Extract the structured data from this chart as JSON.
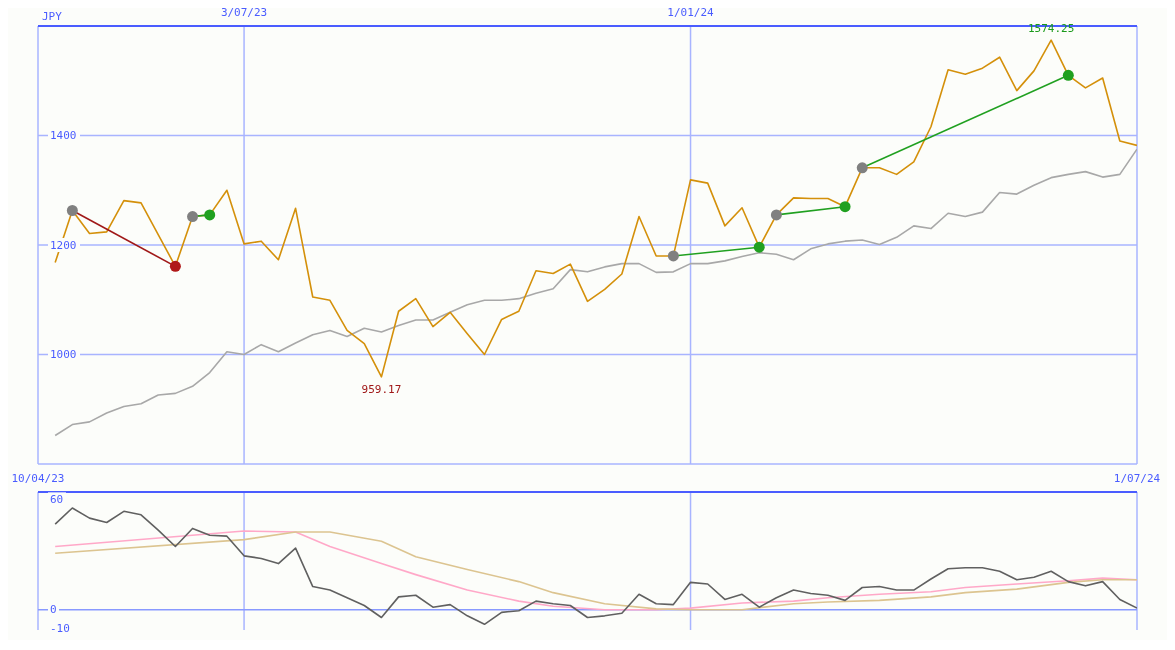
{
  "chart_data": [
    {
      "type": "line",
      "ylabel": "JPY",
      "x": [
        "2023-04-17",
        "2023-04-24",
        "2023-05-01",
        "2023-05-08",
        "2023-05-15",
        "2023-05-22",
        "2023-05-29",
        "2023-06-05",
        "2023-06-12",
        "2023-06-19",
        "2023-06-26",
        "2023-07-03",
        "2023-07-10",
        "2023-07-17",
        "2023-07-24",
        "2023-07-31",
        "2023-08-07",
        "2023-08-14",
        "2023-08-21",
        "2023-08-28",
        "2023-09-04",
        "2023-09-11",
        "2023-09-18",
        "2023-09-25",
        "2023-10-02",
        "2023-10-09",
        "2023-10-16",
        "2023-10-23",
        "2023-10-30",
        "2023-11-06",
        "2023-11-13",
        "2023-11-20",
        "2023-11-27",
        "2023-12-04",
        "2023-12-11",
        "2023-12-18",
        "2023-12-25",
        "2024-01-01",
        "2024-01-08",
        "2024-01-15",
        "2024-01-22",
        "2024-01-29",
        "2024-02-05",
        "2024-02-12",
        "2024-02-19",
        "2024-02-26",
        "2024-03-04",
        "2024-03-11",
        "2024-03-18",
        "2024-03-25",
        "2024-04-01",
        "2024-04-08",
        "2024-04-15",
        "2024-04-22",
        "2024-04-29",
        "2024-05-06",
        "2024-05-13",
        "2024-05-20",
        "2024-05-27",
        "2024-06-03",
        "2024-06-10",
        "2024-06-17",
        "2024-06-24",
        "2024-07-01"
      ],
      "series": [
        {
          "color": "#a8a8a8",
          "values": [
            852,
            872,
            877,
            893,
            905,
            910,
            926,
            929,
            942,
            967,
            1005,
            1000,
            1018,
            1005,
            1021,
            1036,
            1044,
            1033,
            1048,
            1041,
            1053,
            1063,
            1063,
            1077,
            1091,
            1099,
            1099,
            1102,
            1112,
            1120,
            1155,
            1151,
            1160,
            1166,
            1166,
            1150,
            1151,
            1166,
            1166,
            1171,
            1179,
            1186,
            1183,
            1173,
            1193,
            1202,
            1207,
            1209,
            1201,
            1214,
            1235,
            1230,
            1258,
            1252,
            1260,
            1296,
            1293,
            1309,
            1323,
            1329,
            1334,
            1324,
            1329,
            1375
          ]
        },
        {
          "color": "#d4900a",
          "values": [
            1168,
            1263,
            1221,
            1224,
            1281,
            1277,
            1219,
            1161,
            1252,
            1255,
            1300,
            1202,
            1207,
            1173,
            1267,
            1105,
            1099,
            1044,
            1020,
            959.17,
            1079,
            1102,
            1051,
            1077,
            1038,
            1000,
            1064,
            1079,
            1153,
            1148,
            1165,
            1097,
            1119,
            1147,
            1252,
            1180,
            1180,
            1319,
            1313,
            1235,
            1268,
            1196,
            1255,
            1286,
            1285,
            1285,
            1270,
            1341,
            1341,
            1329,
            1352,
            1416,
            1520,
            1512,
            1523,
            1543,
            1482,
            1518,
            1574.25,
            1510,
            1487,
            1505,
            1390,
            1382
          ]
        },
        {
          "x": [
            "2023-04-24",
            "2023-06-05"
          ],
          "values": [
            1263,
            1161
          ],
          "color": "#a01818",
          "colors": [
            "#808080",
            "#b01818"
          ],
          "marker": "circle"
        },
        {
          "x": [
            "2023-06-12",
            "2023-06-19"
          ],
          "values": [
            1252,
            1255
          ],
          "color": "#20a020",
          "colors": [
            "#808080",
            "#20a020"
          ],
          "marker": "circle"
        },
        {
          "x": [
            "2023-12-25",
            "2024-01-29"
          ],
          "values": [
            1180,
            1196
          ],
          "color": "#20a020",
          "colors": [
            "#808080",
            "#20a020"
          ],
          "marker": "circle"
        },
        {
          "x": [
            "2024-02-05",
            "2024-03-04"
          ],
          "values": [
            1255,
            1270
          ],
          "color": "#20a020",
          "colors": [
            "#808080",
            "#20a020"
          ],
          "marker": "circle"
        },
        {
          "x": [
            "2024-03-11",
            "2024-06-03"
          ],
          "values": [
            1341,
            1510
          ],
          "color": "#20a020",
          "colors": [
            "#808080",
            "#20a020"
          ],
          "marker": "circle"
        }
      ],
      "xlim": [
        "2023-04-10",
        "2024-07-01"
      ],
      "xticks": [
        {
          "value": "2023-07-03",
          "label": "3/07/23"
        },
        {
          "value": "2024-01-01",
          "label": "1/01/24"
        }
      ],
      "ylim": [
        800,
        1600
      ],
      "yticks": [
        1000,
        1200,
        1400
      ],
      "grid": true,
      "annotations": [
        {
          "text": "1574.25",
          "x": "2024-05-27",
          "y": 1574.25
        },
        {
          "text": "959.17",
          "x": "2023-08-28",
          "y": 959.17
        }
      ]
    },
    {
      "type": "line",
      "x": [
        "2023-04-17",
        "2023-04-24",
        "2023-05-01",
        "2023-05-08",
        "2023-05-15",
        "2023-05-22",
        "2023-05-29",
        "2023-06-05",
        "2023-06-12",
        "2023-06-19",
        "2023-06-26",
        "2023-07-03",
        "2023-07-10",
        "2023-07-17",
        "2023-07-24",
        "2023-07-31",
        "2023-08-07",
        "2023-08-14",
        "2023-08-21",
        "2023-08-28",
        "2023-09-04",
        "2023-09-11",
        "2023-09-18",
        "2023-09-25",
        "2023-10-02",
        "2023-10-09",
        "2023-10-16",
        "2023-10-23",
        "2023-10-30",
        "2023-11-06",
        "2023-11-13",
        "2023-11-20",
        "2023-11-27",
        "2023-12-04",
        "2023-12-11",
        "2023-12-18",
        "2023-12-25",
        "2024-01-01",
        "2024-01-08",
        "2024-01-15",
        "2024-01-22",
        "2024-01-29",
        "2024-02-05",
        "2024-02-12",
        "2024-02-19",
        "2024-02-26",
        "2024-03-04",
        "2024-03-11",
        "2024-03-18",
        "2024-03-25",
        "2024-04-01",
        "2024-04-08",
        "2024-04-15",
        "2024-04-22",
        "2024-04-29",
        "2024-05-06",
        "2024-05-13",
        "2024-05-20",
        "2024-05-27",
        "2024-06-03",
        "2024-06-10",
        "2024-06-17",
        "2024-06-24",
        "2024-07-01"
      ],
      "series": [
        {
          "color": "#ffa8c8",
          "x": [
            "2023-04-17",
            "2023-07-03",
            "2023-07-24",
            "2023-08-07",
            "2023-08-28",
            "2023-09-11",
            "2023-10-02",
            "2023-10-23",
            "2023-11-06",
            "2023-11-27",
            "2023-12-18",
            "2024-01-01",
            "2024-01-22",
            "2024-02-12",
            "2024-02-26",
            "2024-03-18",
            "2024-04-08",
            "2024-04-22",
            "2024-05-13",
            "2024-06-03",
            "2024-06-17",
            "2024-07-01"
          ],
          "values": [
            34.4,
            42.8,
            42.3,
            34.4,
            25.1,
            19.1,
            10.7,
            4.7,
            1.9,
            0,
            0,
            0.9,
            3.7,
            4.7,
            6.5,
            8.4,
            9.8,
            12.1,
            14,
            15.8,
            17.2,
            16.3
          ]
        },
        {
          "color": "#dcc490",
          "x": [
            "2023-04-17",
            "2023-07-03",
            "2023-07-24",
            "2023-08-07",
            "2023-08-28",
            "2023-09-11",
            "2023-10-02",
            "2023-10-23",
            "2023-11-06",
            "2023-11-27",
            "2023-12-18",
            "2024-01-01",
            "2024-01-22",
            "2024-02-12",
            "2024-02-26",
            "2024-03-18",
            "2024-04-08",
            "2024-04-22",
            "2024-05-13",
            "2024-06-03",
            "2024-06-17",
            "2024-07-01"
          ],
          "values": [
            30.7,
            38.1,
            42.3,
            42.3,
            37.2,
            28.8,
            21.9,
            15.3,
            9.3,
            3.3,
            0.5,
            0,
            0,
            3.3,
            4.2,
            5.1,
            7,
            9.3,
            11.2,
            14.9,
            16.3,
            16.3
          ]
        },
        {
          "color": "#606060",
          "values": [
            46.5,
            55.3,
            49.8,
            47.4,
            53.5,
            51.6,
            43.3,
            34.4,
            44.2,
            40.5,
            40,
            29.3,
            27.9,
            25.1,
            33.5,
            12.6,
            10.7,
            6.5,
            2.3,
            -4.2,
            7,
            7.9,
            1.4,
            2.8,
            -3.3,
            -7.9,
            -1.4,
            -0.5,
            4.7,
            3.3,
            2.3,
            -4.2,
            -3.3,
            -1.9,
            8.4,
            3.3,
            2.8,
            14.9,
            14,
            5.6,
            8.4,
            1.4,
            6.5,
            10.7,
            8.8,
            7.9,
            5.1,
            12.1,
            12.6,
            10.7,
            10.7,
            16.7,
            22.3,
            22.8,
            22.8,
            20.9,
            16.3,
            17.7,
            20.9,
            15.3,
            13,
            15.3,
            5.6,
            0.9
          ]
        }
      ],
      "xlim": [
        "2023-04-10",
        "2024-07-01"
      ],
      "xticks": [
        {
          "value": "2023-04-10",
          "label": "10/04/23"
        },
        {
          "value": "2023-07-03",
          "label": null
        },
        {
          "value": "2024-01-01",
          "label": null
        },
        {
          "value": "2024-07-01",
          "label": "1/07/24"
        }
      ],
      "ylim": [
        -11,
        64
      ],
      "yticks": [
        -10,
        0,
        60
      ],
      "grid": "x",
      "ref_lines": [
        {
          "axis": "y",
          "value": 0,
          "color": "#8899ff"
        }
      ]
    }
  ]
}
